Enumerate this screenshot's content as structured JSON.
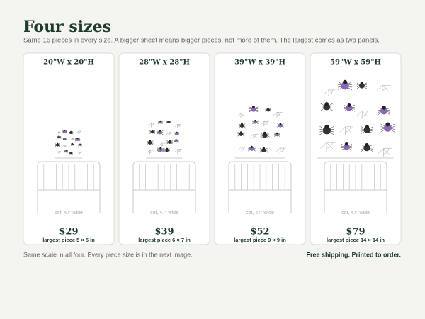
{
  "header": {
    "title": "Four sizes",
    "subtitle": "Same 16 pieces in every size. A bigger sheet means bigger pieces, not more of them. The largest comes as two panels."
  },
  "cards": [
    {
      "size": "20\"W x 20\"H",
      "crib": "cot, 47\" wide",
      "price": "$29",
      "largest": "largest piece 5 × 5 in"
    },
    {
      "size": "28\"W x 28\"H",
      "crib": "cot, 47\" wide",
      "price": "$39",
      "largest": "largest piece 6 × 7 in"
    },
    {
      "size": "39\"W x 39\"H",
      "crib": "cot, 47\" wide",
      "price": "$52",
      "largest": "largest piece 9 × 9 in"
    },
    {
      "size": "59\"W x 59\"H",
      "crib": "cot, 47\" wide",
      "price": "$79",
      "largest": "largest piece 14 × 14 in"
    }
  ],
  "footer": {
    "note": "Same scale in all four. Every piece size is in the next image.",
    "shipping": "Free shipping. Printed to order."
  }
}
